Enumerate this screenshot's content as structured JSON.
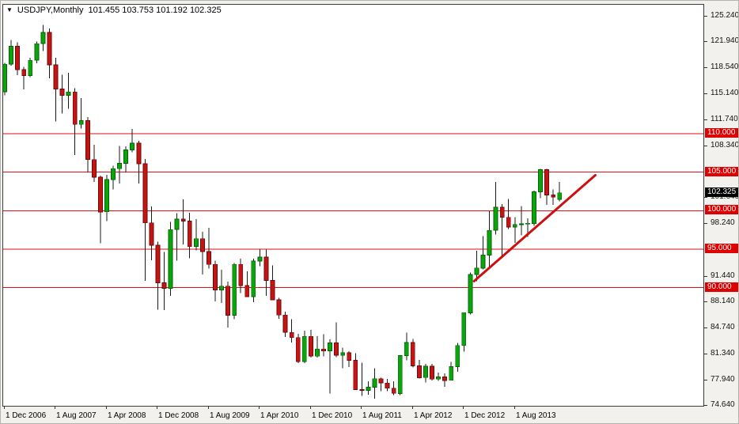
{
  "window": {
    "title_icon": "▼",
    "symbol": "USDJPY,Monthly",
    "ohlc_text": "101.455 103.753 101.192 102.325"
  },
  "colors": {
    "bull": "#0CA40C",
    "bull_border": "#056405",
    "bear": "#C41414",
    "bear_border": "#6E0808",
    "wick": "#1A1A1A",
    "level_line": "#DE1212",
    "trend_line": "#CC1010",
    "level_label_bg": "#DE0000",
    "current_label_bg": "#000000",
    "label_text": "#FFFFFF",
    "plot_bg": "#FFFFFF",
    "axis_text": "#111111"
  },
  "chart_data": {
    "type": "candlestick",
    "title": "USDJPY,Monthly",
    "symbol": "USDJPY",
    "timeframe": "Monthly",
    "current_ohlc": {
      "open": 101.455,
      "high": 103.753,
      "low": 101.192,
      "close": 102.325
    },
    "ylim": [
      74.65,
      126.75
    ],
    "grid": false,
    "legend": false,
    "y_ticks": [
      {
        "label": "125.240",
        "value": 125.24
      },
      {
        "label": "121.940",
        "value": 121.94
      },
      {
        "label": "118.540",
        "value": 118.54
      },
      {
        "label": "115.140",
        "value": 115.14
      },
      {
        "label": "111.740",
        "value": 111.74
      },
      {
        "label": "108.340",
        "value": 108.34
      },
      {
        "label": "101.640",
        "value": 101.64
      },
      {
        "label": "98.240",
        "value": 98.24
      },
      {
        "label": "91.440",
        "value": 91.44
      },
      {
        "label": "88.140",
        "value": 88.14
      },
      {
        "label": "84.740",
        "value": 84.74
      },
      {
        "label": "81.340",
        "value": 81.34
      },
      {
        "label": "77.940",
        "value": 77.94
      },
      {
        "label": "74.640",
        "value": 74.64
      }
    ],
    "price_levels": [
      {
        "label": "110.000",
        "value": 110.0
      },
      {
        "label": "105.000",
        "value": 105.0
      },
      {
        "label": "100.000",
        "value": 100.0
      },
      {
        "label": "95.000",
        "value": 95.0
      },
      {
        "label": "90.000",
        "value": 90.0
      }
    ],
    "current_price": {
      "label": "102.325",
      "value": 102.325
    },
    "x_ticks": [
      {
        "label": "1 Dec 2006",
        "month_index": 0
      },
      {
        "label": "1 Aug 2007",
        "month_index": 8
      },
      {
        "label": "1 Apr 2008",
        "month_index": 16
      },
      {
        "label": "1 Dec 2008",
        "month_index": 24
      },
      {
        "label": "1 Aug 2009",
        "month_index": 32
      },
      {
        "label": "1 Apr 2010",
        "month_index": 40
      },
      {
        "label": "1 Dec 2010",
        "month_index": 48
      },
      {
        "label": "1 Aug 2011",
        "month_index": 56
      },
      {
        "label": "1 Apr 2012",
        "month_index": 64
      },
      {
        "label": "1 Dec 2012",
        "month_index": 72
      },
      {
        "label": "1 Aug 2013",
        "month_index": 80
      }
    ],
    "trend_line": {
      "from": {
        "month_index": 73.6,
        "price": 90.85
      },
      "to": {
        "month_index": 92.6,
        "price": 104.6
      }
    },
    "candles": [
      {
        "t": "2006-12",
        "o": 115.45,
        "h": 119.2,
        "l": 114.99,
        "c": 119.02
      },
      {
        "t": "2007-01",
        "o": 119.02,
        "h": 122.19,
        "l": 118.83,
        "c": 121.34
      },
      {
        "t": "2007-02",
        "o": 121.34,
        "h": 121.85,
        "l": 117.6,
        "c": 118.34
      },
      {
        "t": "2007-03",
        "o": 118.34,
        "h": 118.7,
        "l": 115.75,
        "c": 117.56
      },
      {
        "t": "2007-04",
        "o": 117.56,
        "h": 119.84,
        "l": 117.34,
        "c": 119.54
      },
      {
        "t": "2007-05",
        "o": 119.54,
        "h": 121.96,
        "l": 119.17,
        "c": 121.69
      },
      {
        "t": "2007-06",
        "o": 121.69,
        "h": 124.14,
        "l": 120.75,
        "c": 123.17
      },
      {
        "t": "2007-07",
        "o": 123.17,
        "h": 123.66,
        "l": 117.19,
        "c": 118.93
      },
      {
        "t": "2007-08",
        "o": 118.93,
        "h": 119.87,
        "l": 111.6,
        "c": 115.81
      },
      {
        "t": "2007-09",
        "o": 115.81,
        "h": 117.63,
        "l": 112.61,
        "c": 114.99
      },
      {
        "t": "2007-10",
        "o": 114.99,
        "h": 117.93,
        "l": 113.25,
        "c": 115.43
      },
      {
        "t": "2007-11",
        "o": 115.43,
        "h": 115.93,
        "l": 107.22,
        "c": 111.21
      },
      {
        "t": "2007-12",
        "o": 111.21,
        "h": 114.63,
        "l": 110.66,
        "c": 111.71
      },
      {
        "t": "2008-01",
        "o": 111.71,
        "h": 112.16,
        "l": 104.97,
        "c": 106.64
      },
      {
        "t": "2008-02",
        "o": 106.64,
        "h": 108.56,
        "l": 103.74,
        "c": 104.34
      },
      {
        "t": "2008-03",
        "o": 104.34,
        "h": 104.55,
        "l": 95.76,
        "c": 99.85
      },
      {
        "t": "2008-04",
        "o": 99.85,
        "h": 104.64,
        "l": 98.63,
        "c": 104.05
      },
      {
        "t": "2008-05",
        "o": 104.05,
        "h": 105.85,
        "l": 102.73,
        "c": 105.46
      },
      {
        "t": "2008-06",
        "o": 105.46,
        "h": 108.42,
        "l": 103.51,
        "c": 106.14
      },
      {
        "t": "2008-07",
        "o": 106.14,
        "h": 108.35,
        "l": 104.99,
        "c": 107.9
      },
      {
        "t": "2008-08",
        "o": 107.9,
        "h": 110.64,
        "l": 107.58,
        "c": 108.79
      },
      {
        "t": "2008-09",
        "o": 108.79,
        "h": 109.05,
        "l": 103.53,
        "c": 106.11
      },
      {
        "t": "2008-10",
        "o": 106.11,
        "h": 106.71,
        "l": 90.89,
        "c": 98.42
      },
      {
        "t": "2008-11",
        "o": 98.42,
        "h": 100.55,
        "l": 93.55,
        "c": 95.52
      },
      {
        "t": "2008-12",
        "o": 95.52,
        "h": 95.97,
        "l": 87.13,
        "c": 90.64
      },
      {
        "t": "2009-01",
        "o": 90.64,
        "h": 94.62,
        "l": 87.1,
        "c": 89.92
      },
      {
        "t": "2009-02",
        "o": 89.92,
        "h": 98.56,
        "l": 88.92,
        "c": 97.55
      },
      {
        "t": "2009-03",
        "o": 97.55,
        "h": 99.67,
        "l": 93.53,
        "c": 98.9
      },
      {
        "t": "2009-04",
        "o": 98.9,
        "h": 101.45,
        "l": 95.6,
        "c": 98.63
      },
      {
        "t": "2009-05",
        "o": 98.63,
        "h": 99.74,
        "l": 93.83,
        "c": 95.33
      },
      {
        "t": "2009-06",
        "o": 95.33,
        "h": 98.88,
        "l": 94.86,
        "c": 96.35
      },
      {
        "t": "2009-07",
        "o": 96.35,
        "h": 97.28,
        "l": 91.72,
        "c": 94.69
      },
      {
        "t": "2009-08",
        "o": 94.69,
        "h": 97.77,
        "l": 92.5,
        "c": 93.02
      },
      {
        "t": "2009-09",
        "o": 93.02,
        "h": 93.52,
        "l": 88.22,
        "c": 89.71
      },
      {
        "t": "2009-10",
        "o": 89.71,
        "h": 92.32,
        "l": 88.0,
        "c": 90.19
      },
      {
        "t": "2009-11",
        "o": 90.19,
        "h": 90.76,
        "l": 84.81,
        "c": 86.41
      },
      {
        "t": "2009-12",
        "o": 86.41,
        "h": 93.21,
        "l": 85.9,
        "c": 93.02
      },
      {
        "t": "2010-01",
        "o": 93.02,
        "h": 93.76,
        "l": 89.27,
        "c": 90.28
      },
      {
        "t": "2010-02",
        "o": 90.28,
        "h": 92.14,
        "l": 88.8,
        "c": 88.84
      },
      {
        "t": "2010-03",
        "o": 88.84,
        "h": 93.74,
        "l": 88.13,
        "c": 93.46
      },
      {
        "t": "2010-04",
        "o": 93.46,
        "h": 94.98,
        "l": 92.8,
        "c": 93.98
      },
      {
        "t": "2010-05",
        "o": 93.98,
        "h": 94.97,
        "l": 88.95,
        "c": 90.95
      },
      {
        "t": "2010-06",
        "o": 90.95,
        "h": 92.88,
        "l": 88.58,
        "c": 88.43
      },
      {
        "t": "2010-07",
        "o": 88.43,
        "h": 88.7,
        "l": 85.95,
        "c": 86.44
      },
      {
        "t": "2010-08",
        "o": 86.44,
        "h": 86.87,
        "l": 83.58,
        "c": 84.19
      },
      {
        "t": "2010-09",
        "o": 84.19,
        "h": 85.92,
        "l": 82.87,
        "c": 83.52
      },
      {
        "t": "2010-10",
        "o": 83.52,
        "h": 84.0,
        "l": 80.21,
        "c": 80.4
      },
      {
        "t": "2010-11",
        "o": 80.4,
        "h": 84.4,
        "l": 80.21,
        "c": 83.67
      },
      {
        "t": "2010-12",
        "o": 83.67,
        "h": 84.51,
        "l": 80.92,
        "c": 81.11
      },
      {
        "t": "2011-01",
        "o": 81.11,
        "h": 83.67,
        "l": 80.92,
        "c": 82.03
      },
      {
        "t": "2011-02",
        "o": 82.03,
        "h": 83.97,
        "l": 81.09,
        "c": 81.77
      },
      {
        "t": "2011-03",
        "o": 81.77,
        "h": 83.29,
        "l": 76.25,
        "c": 82.83
      },
      {
        "t": "2011-04",
        "o": 82.83,
        "h": 85.51,
        "l": 80.96,
        "c": 81.21
      },
      {
        "t": "2011-05",
        "o": 81.21,
        "h": 82.22,
        "l": 79.55,
        "c": 81.53
      },
      {
        "t": "2011-06",
        "o": 81.53,
        "h": 81.76,
        "l": 79.68,
        "c": 80.55
      },
      {
        "t": "2011-07",
        "o": 80.55,
        "h": 81.47,
        "l": 76.72,
        "c": 76.77
      },
      {
        "t": "2011-08",
        "o": 76.77,
        "h": 80.23,
        "l": 75.94,
        "c": 76.66
      },
      {
        "t": "2011-09",
        "o": 76.66,
        "h": 77.85,
        "l": 76.11,
        "c": 77.05
      },
      {
        "t": "2011-10",
        "o": 77.05,
        "h": 79.52,
        "l": 75.57,
        "c": 78.17
      },
      {
        "t": "2011-11",
        "o": 78.17,
        "h": 78.28,
        "l": 76.57,
        "c": 77.61
      },
      {
        "t": "2011-12",
        "o": 77.61,
        "h": 78.15,
        "l": 76.55,
        "c": 76.94
      },
      {
        "t": "2012-01",
        "o": 76.94,
        "h": 77.84,
        "l": 76.02,
        "c": 76.27
      },
      {
        "t": "2012-02",
        "o": 76.27,
        "h": 81.24,
        "l": 76.02,
        "c": 81.17
      },
      {
        "t": "2012-03",
        "o": 81.17,
        "h": 84.18,
        "l": 80.57,
        "c": 82.87
      },
      {
        "t": "2012-04",
        "o": 82.87,
        "h": 83.32,
        "l": 79.64,
        "c": 79.83
      },
      {
        "t": "2012-05",
        "o": 79.83,
        "h": 80.61,
        "l": 78.21,
        "c": 78.32
      },
      {
        "t": "2012-06",
        "o": 78.32,
        "h": 80.09,
        "l": 77.66,
        "c": 79.79
      },
      {
        "t": "2012-07",
        "o": 79.79,
        "h": 80.1,
        "l": 77.94,
        "c": 78.12
      },
      {
        "t": "2012-08",
        "o": 78.12,
        "h": 78.99,
        "l": 77.9,
        "c": 78.39
      },
      {
        "t": "2012-09",
        "o": 78.39,
        "h": 78.86,
        "l": 77.13,
        "c": 77.96
      },
      {
        "t": "2012-10",
        "o": 77.96,
        "h": 80.37,
        "l": 77.93,
        "c": 79.75
      },
      {
        "t": "2012-11",
        "o": 79.75,
        "h": 82.83,
        "l": 79.06,
        "c": 82.48
      },
      {
        "t": "2012-12",
        "o": 82.48,
        "h": 86.78,
        "l": 81.69,
        "c": 86.74
      },
      {
        "t": "2013-01",
        "o": 86.74,
        "h": 91.97,
        "l": 86.54,
        "c": 91.7
      },
      {
        "t": "2013-02",
        "o": 91.7,
        "h": 94.77,
        "l": 90.85,
        "c": 92.56
      },
      {
        "t": "2013-03",
        "o": 92.56,
        "h": 96.71,
        "l": 92.4,
        "c": 94.22
      },
      {
        "t": "2013-04",
        "o": 94.22,
        "h": 99.95,
        "l": 92.57,
        "c": 97.44
      },
      {
        "t": "2013-05",
        "o": 97.44,
        "h": 103.74,
        "l": 96.92,
        "c": 100.45
      },
      {
        "t": "2013-06",
        "o": 100.45,
        "h": 100.86,
        "l": 93.79,
        "c": 99.14
      },
      {
        "t": "2013-07",
        "o": 99.14,
        "h": 101.53,
        "l": 97.62,
        "c": 97.88
      },
      {
        "t": "2013-08",
        "o": 97.88,
        "h": 99.14,
        "l": 95.81,
        "c": 98.17
      },
      {
        "t": "2013-09",
        "o": 98.17,
        "h": 100.61,
        "l": 96.81,
        "c": 98.27
      },
      {
        "t": "2013-10",
        "o": 98.27,
        "h": 98.98,
        "l": 96.57,
        "c": 98.36
      },
      {
        "t": "2013-11",
        "o": 98.36,
        "h": 102.61,
        "l": 98.05,
        "c": 102.44
      },
      {
        "t": "2013-12",
        "o": 102.44,
        "h": 105.41,
        "l": 101.62,
        "c": 105.31
      },
      {
        "t": "2014-01",
        "o": 105.31,
        "h": 105.44,
        "l": 100.76,
        "c": 102.04
      },
      {
        "t": "2014-02",
        "o": 102.04,
        "h": 102.74,
        "l": 100.75,
        "c": 101.8
      },
      {
        "t": "2014-03",
        "o": 101.455,
        "h": 103.753,
        "l": 101.192,
        "c": 102.325
      }
    ]
  }
}
